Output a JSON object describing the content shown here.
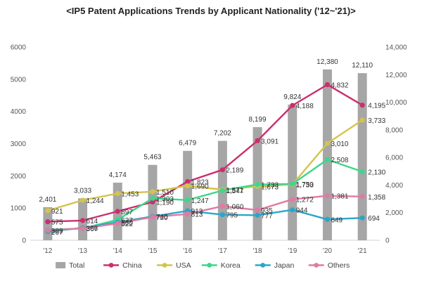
{
  "chart_data": {
    "type": "bar+line",
    "title": "<IP5 Patent Applications Trends by Applicant Nationality ('12~'21)>",
    "categories": [
      "'12",
      "'13",
      "'14",
      "'15",
      "'16",
      "'17",
      "'18",
      "'19",
      "'20",
      "'21"
    ],
    "left_axis": {
      "ylim": [
        0,
        6000
      ],
      "ticks": [
        0,
        1000,
        2000,
        3000,
        4000,
        5000,
        6000
      ]
    },
    "right_axis": {
      "ylim": [
        0,
        14000
      ],
      "ticks": [
        0,
        2000,
        4000,
        6000,
        8000,
        10000,
        12000,
        14000
      ]
    },
    "series": [
      {
        "name": "Total",
        "type": "bar",
        "axis": "right",
        "color": "#a6a6a6",
        "values": [
          2401,
          3033,
          4174,
          5463,
          6479,
          7202,
          8199,
          9824,
          12380,
          12110
        ],
        "labels": [
          "2,401",
          "3,033",
          "4,174",
          "5,463",
          "6,479",
          "7,202",
          "8,199",
          "9,824",
          "12,380",
          "12,110"
        ]
      },
      {
        "name": "China",
        "type": "line",
        "axis": "left",
        "color": "#cc2e6e",
        "values": [
          575,
          614,
          897,
          1190,
          1823,
          2189,
          3091,
          4188,
          4832,
          4195
        ],
        "labels": [
          "575",
          "614",
          "897",
          "1,190",
          "1,823",
          "2,189",
          "3,091",
          "4,188",
          "4,832",
          "4,195"
        ]
      },
      {
        "name": "USA",
        "type": "line",
        "axis": "left",
        "color": "#d4c44a",
        "values": [
          921,
          1244,
          1453,
          1510,
          1690,
          1571,
          1673,
          1733,
          3010,
          3733
        ],
        "labels": [
          "921",
          "1,244",
          "1,453",
          "1,510",
          "1,690",
          "1,571",
          "1,673",
          "1,733",
          "3,010",
          "3,733"
        ]
      },
      {
        "name": "Korea",
        "type": "line",
        "axis": "left",
        "color": "#3dd68c",
        "values": [
          330,
          367,
          637,
          1303,
          1247,
          1547,
          1733,
          1750,
          2508,
          2130
        ],
        "labels": [
          "",
          "",
          "637",
          "1,303",
          "1,247",
          "1,547",
          "1,733",
          "1,750",
          "2,508",
          "2,130"
        ]
      },
      {
        "name": "Japan",
        "type": "line",
        "axis": "left",
        "color": "#2aa7c8",
        "values": [
          267,
          386,
          560,
          740,
          913,
          795,
          777,
          944,
          649,
          694
        ],
        "labels": [
          "267",
          "386",
          "560",
          "740",
          "913",
          "795",
          "777",
          "944",
          "649",
          "694"
        ]
      },
      {
        "name": "Others",
        "type": "line",
        "axis": "left",
        "color": "#e17aa3",
        "values": [
          309,
          367,
          522,
          720,
          813,
          1060,
          935,
          1272,
          1381,
          1358
        ],
        "labels": [
          "309",
          "367",
          "522",
          "720",
          "813",
          "1,060",
          "935",
          "1,272",
          "1,381",
          "1,358"
        ]
      }
    ],
    "grid": false,
    "legend_position": "bottom"
  }
}
